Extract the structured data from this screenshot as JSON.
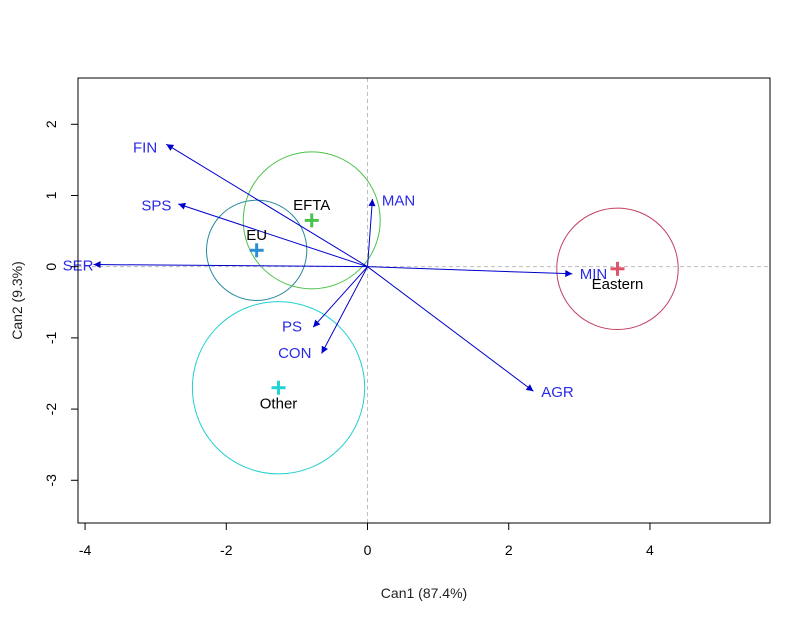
{
  "chart_data": {
    "type": "scatter",
    "title": "",
    "xlabel": "Can1 (87.4%)",
    "ylabel": "Can2 (9.3%)",
    "xlim": [
      -4.1,
      5.7
    ],
    "ylim": [
      -3.6,
      2.65
    ],
    "xticks": [
      -4,
      -2,
      0,
      2,
      4
    ],
    "yticks": [
      -3,
      -2,
      -1,
      0,
      1,
      2
    ],
    "reference_lines": {
      "x": 0,
      "y": 0,
      "style": "dashed"
    },
    "grid": false,
    "vector_color": "#0000cd",
    "label_color": "#2a2ae6",
    "vectors": [
      {
        "name": "FIN",
        "x": -2.85,
        "y": 1.72,
        "lx": -3.15,
        "ly": 1.67
      },
      {
        "name": "SPS",
        "x": -2.68,
        "y": 0.88,
        "lx": -2.99,
        "ly": 0.85
      },
      {
        "name": "SER",
        "x": -3.88,
        "y": 0.03,
        "lx": -4.1,
        "ly": 0.01
      },
      {
        "name": "MAN",
        "x": 0.07,
        "y": 0.95,
        "lx": 0.44,
        "ly": 0.92
      },
      {
        "name": "MIN",
        "x": 2.9,
        "y": -0.1,
        "lx": 3.2,
        "ly": -0.11
      },
      {
        "name": "PS",
        "x": -0.77,
        "y": -0.85,
        "lx": -1.07,
        "ly": -0.85
      },
      {
        "name": "CON",
        "x": -0.65,
        "y": -1.22,
        "lx": -1.03,
        "ly": -1.22
      },
      {
        "name": "AGR",
        "x": 2.35,
        "y": -1.75,
        "lx": 2.69,
        "ly": -1.77
      }
    ],
    "groups": [
      {
        "name": "EU",
        "x": -1.57,
        "y": 0.23,
        "r": 0.71,
        "color": "#2c8fd6",
        "circle_color": "#29899f",
        "lx": -1.57,
        "ly": 0.44
      },
      {
        "name": "EFTA",
        "x": -0.79,
        "y": 0.65,
        "r": 0.97,
        "color": "#4bc24b",
        "circle_color": "#4bc24b",
        "lx": -0.79,
        "ly": 0.86
      },
      {
        "name": "Eastern",
        "x": 3.54,
        "y": -0.03,
        "r": 0.86,
        "color": "#df536b",
        "circle_color": "#c24060",
        "lx": 3.54,
        "ly": -0.25
      },
      {
        "name": "Other",
        "x": -1.26,
        "y": -1.7,
        "r": 1.22,
        "color": "#22d3d3",
        "circle_color": "#22cfcf",
        "lx": -1.26,
        "ly": -1.93
      }
    ]
  }
}
